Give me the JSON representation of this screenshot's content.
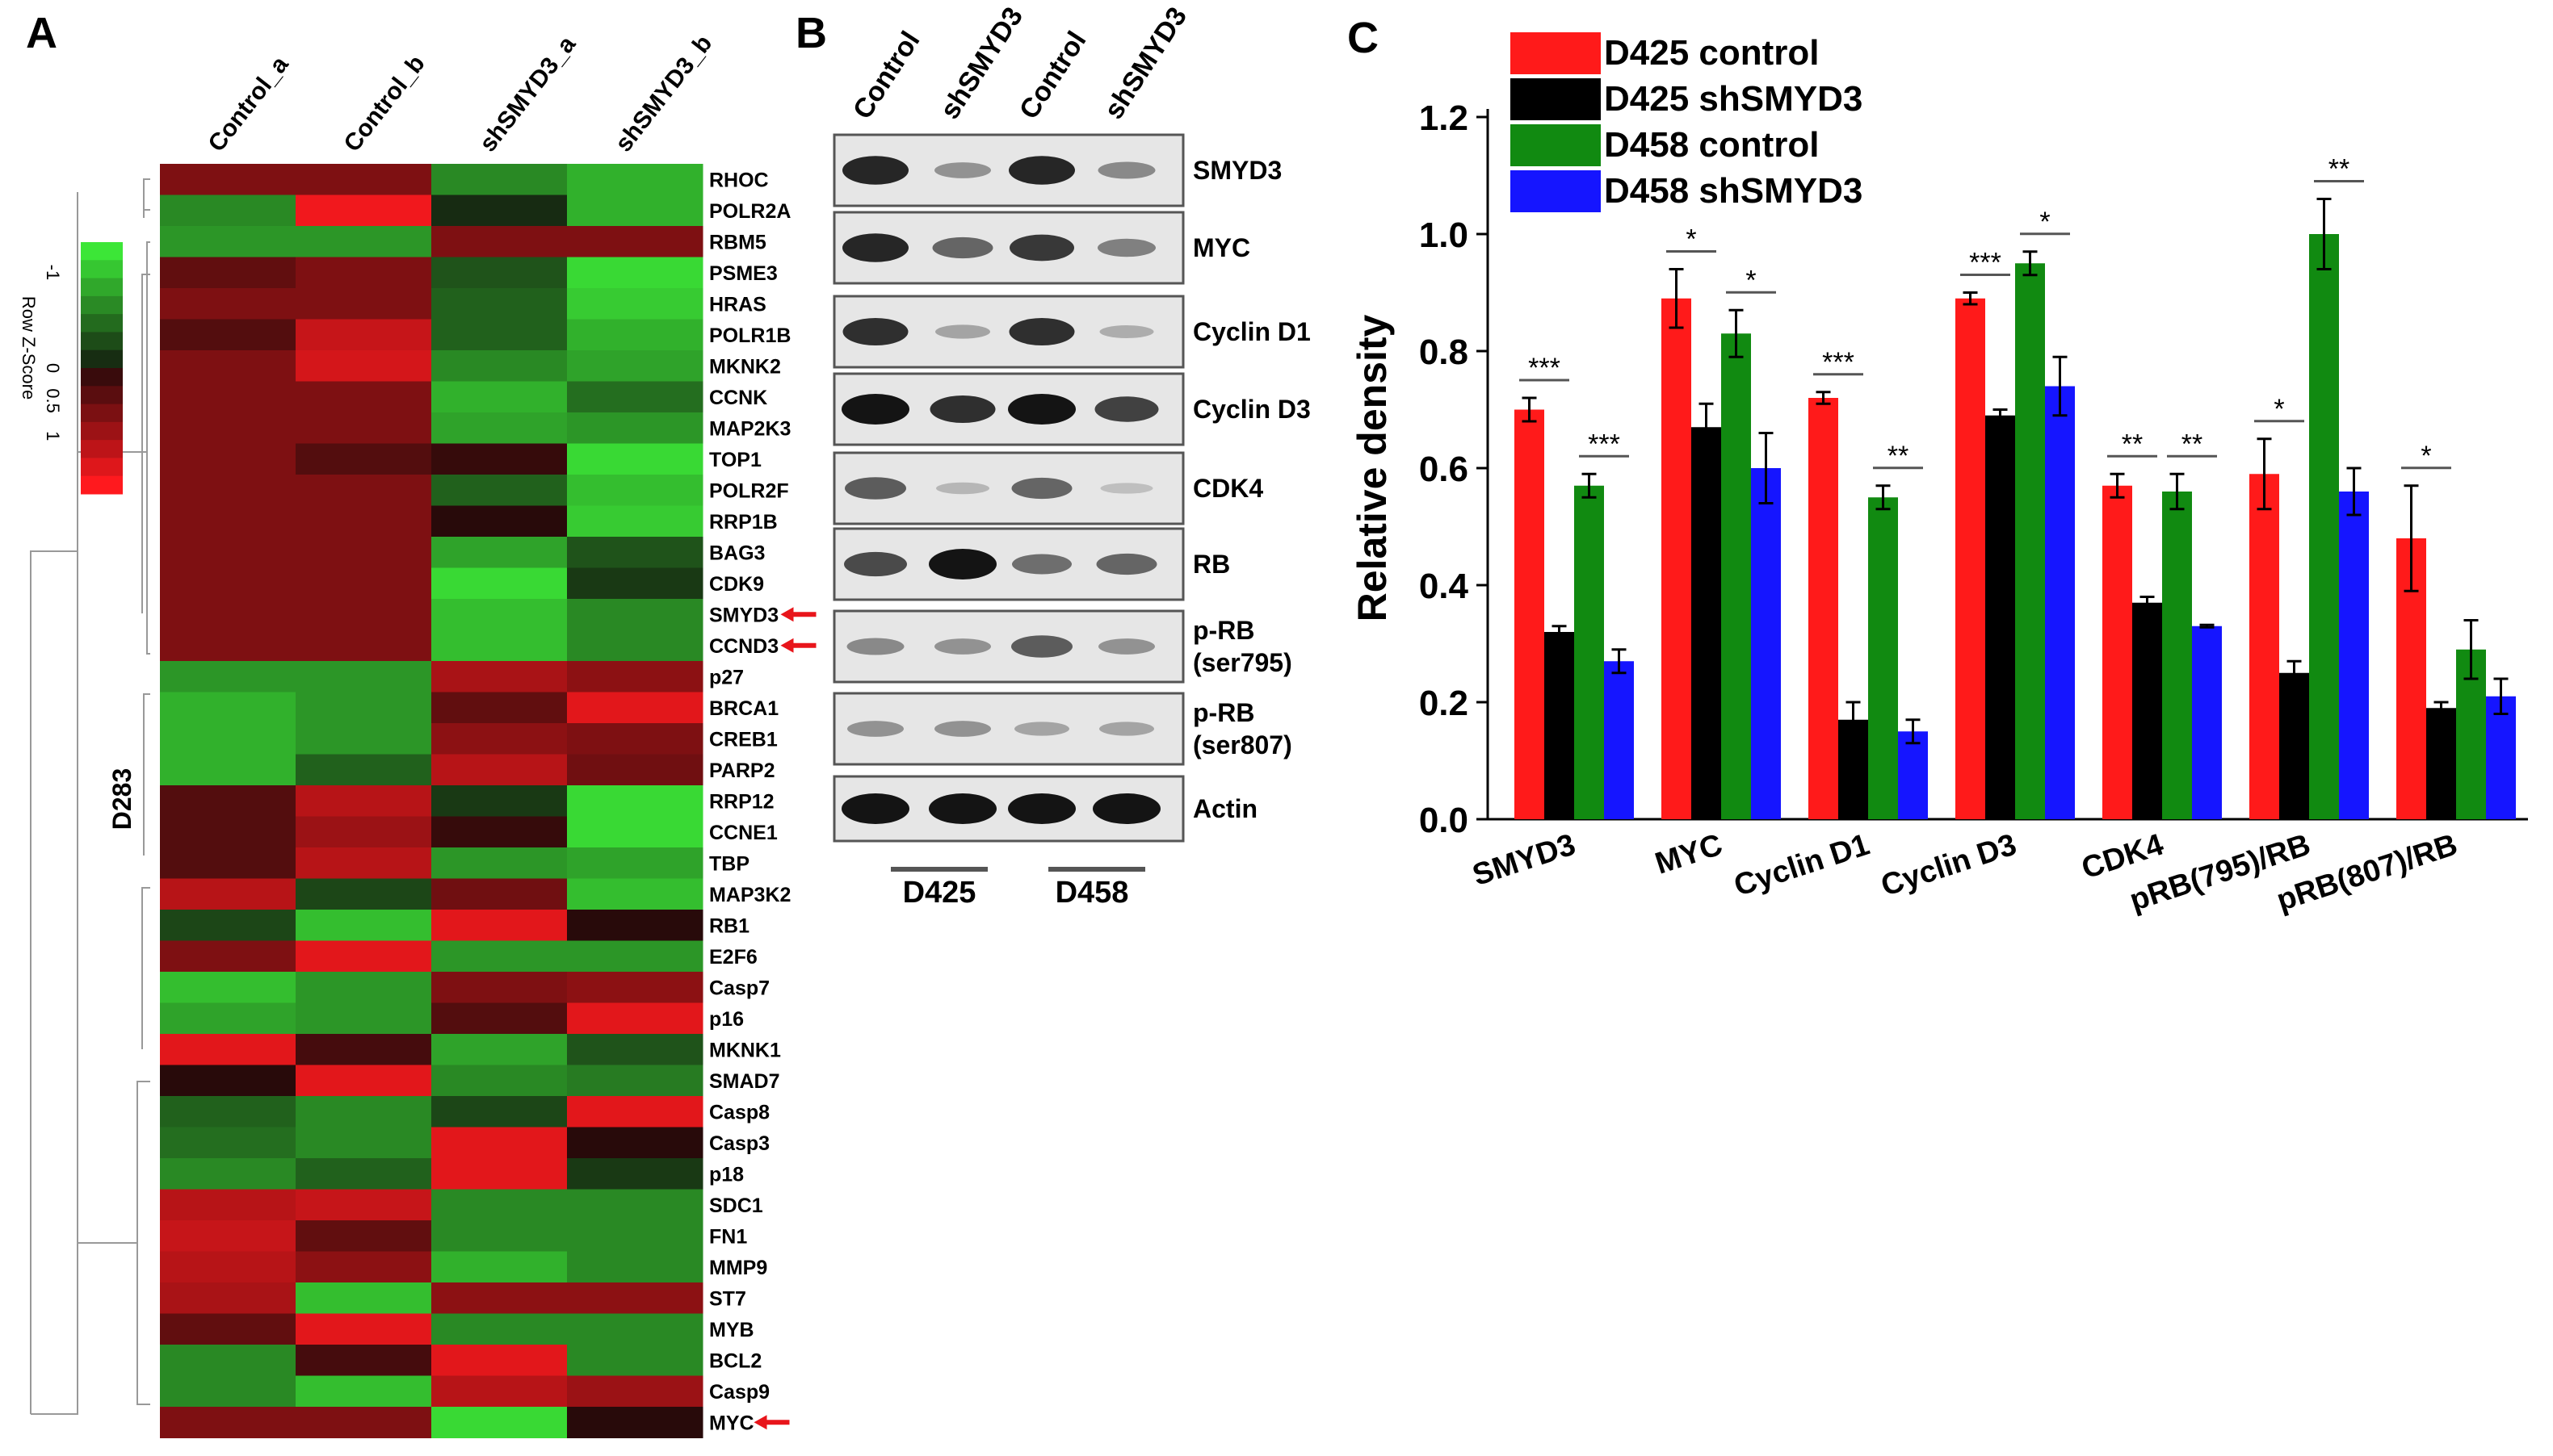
{
  "panels": {
    "a": "A",
    "b": "B",
    "c": "C"
  },
  "heatmap": {
    "columns": [
      "Control_a",
      "Control_b",
      "shSMYD3_a",
      "shSMYD3_b"
    ],
    "genes": [
      "RHOC",
      "POLR2A",
      "RBM5",
      "PSME3",
      "HRAS",
      "POLR1B",
      "MKNK2",
      "CCNK",
      "MAP2K3",
      "TOP1",
      "POLR2F",
      "RRP1B",
      "BAG3",
      "CDK9",
      "SMYD3",
      "CCND3",
      "p27",
      "BRCA1",
      "CREB1",
      "PARP2",
      "RRP12",
      "CCNE1",
      "TBP",
      "MAP3K2",
      "RB1",
      "E2F6",
      "Casp7",
      "p16",
      "MKNK1",
      "SMAD7",
      "Casp8",
      "Casp3",
      "p18",
      "SDC1",
      "FN1",
      "MMP9",
      "ST7",
      "MYB",
      "BCL2",
      "Casp9",
      "MYC"
    ],
    "arrow_genes": [
      "SMYD3",
      "CCND3",
      "MYC"
    ],
    "cluster_label": "D283",
    "colorkey_title": "Row Z-Score",
    "colorkey_ticks": [
      "-1",
      "0",
      "0.5",
      "1"
    ],
    "values": [
      [
        0.6,
        0.6,
        -0.8,
        -1.1
      ],
      [
        -0.8,
        1.4,
        -0.1,
        -1.1
      ],
      [
        -0.9,
        -0.9,
        0.6,
        0.6
      ],
      [
        0.4,
        0.6,
        -0.4,
        -1.4
      ],
      [
        0.6,
        0.6,
        -0.5,
        -1.3
      ],
      [
        0.3,
        1.1,
        -0.5,
        -1.1
      ],
      [
        0.6,
        1.2,
        -0.8,
        -1.0
      ],
      [
        0.6,
        0.6,
        -1.1,
        -0.6
      ],
      [
        0.6,
        0.6,
        -1.0,
        -0.9
      ],
      [
        0.6,
        0.3,
        0.1,
        -1.4
      ],
      [
        0.6,
        0.6,
        -0.5,
        -1.2
      ],
      [
        0.6,
        0.6,
        0.0,
        -1.3
      ],
      [
        0.6,
        0.6,
        -1.0,
        -0.4
      ],
      [
        0.6,
        0.6,
        -1.4,
        -0.2
      ],
      [
        0.6,
        0.6,
        -1.2,
        -0.8
      ],
      [
        0.6,
        0.6,
        -1.2,
        -0.8
      ],
      [
        -0.9,
        -0.9,
        0.9,
        0.7
      ],
      [
        -1.1,
        -0.9,
        0.4,
        1.3
      ],
      [
        -1.1,
        -0.9,
        0.7,
        0.6
      ],
      [
        -1.1,
        -0.5,
        1.0,
        0.5
      ],
      [
        0.3,
        1.0,
        -0.2,
        -1.4
      ],
      [
        0.3,
        0.8,
        0.1,
        -1.4
      ],
      [
        0.3,
        1.0,
        -0.9,
        -1.0
      ],
      [
        1.0,
        -0.3,
        0.5,
        -1.2
      ],
      [
        -0.3,
        -1.2,
        1.3,
        0.0
      ],
      [
        0.6,
        1.3,
        -0.9,
        -0.9
      ],
      [
        -1.2,
        -0.9,
        0.6,
        0.7
      ],
      [
        -1.0,
        -0.9,
        0.3,
        1.3
      ],
      [
        1.3,
        0.2,
        -1.0,
        -0.4
      ],
      [
        0.0,
        1.3,
        -0.8,
        -0.7
      ],
      [
        -0.5,
        -0.8,
        -0.3,
        1.3
      ],
      [
        -0.6,
        -0.8,
        1.3,
        0.0
      ],
      [
        -0.8,
        -0.5,
        1.3,
        -0.2
      ],
      [
        1.0,
        1.1,
        -0.8,
        -0.8
      ],
      [
        1.1,
        0.4,
        -0.8,
        -0.8
      ],
      [
        1.0,
        0.7,
        -1.1,
        -0.8
      ],
      [
        0.9,
        -1.2,
        0.7,
        0.7
      ],
      [
        0.4,
        1.3,
        -0.8,
        -0.8
      ],
      [
        -0.8,
        0.2,
        1.3,
        -0.8
      ],
      [
        -0.8,
        -1.2,
        1.0,
        0.8
      ],
      [
        0.6,
        0.6,
        -1.4,
        0.0
      ]
    ]
  },
  "western": {
    "lanes": [
      "Control",
      "shSMYD3",
      "Control",
      "shSMYD3"
    ],
    "groups": [
      "D425",
      "D458"
    ],
    "blots": [
      {
        "label": "SMYD3",
        "band": [
          0.9,
          0.3,
          0.9,
          0.35
        ]
      },
      {
        "label": "MYC",
        "band": [
          0.9,
          0.55,
          0.8,
          0.4
        ]
      },
      {
        "label": "Cyclin D1",
        "band": [
          0.85,
          0.2,
          0.85,
          0.15
        ]
      },
      {
        "label": "Cyclin D3",
        "band": [
          1.0,
          0.85,
          1.0,
          0.75
        ]
      },
      {
        "label": "CDK4",
        "band": [
          0.6,
          0.1,
          0.55,
          0.05
        ]
      },
      {
        "label": "RB",
        "band": [
          0.7,
          1.0,
          0.5,
          0.55
        ]
      },
      {
        "label": "p-RB\n(ser795)",
        "band": [
          0.35,
          0.3,
          0.6,
          0.3
        ]
      },
      {
        "label": "p-RB\n(ser807)",
        "band": [
          0.3,
          0.3,
          0.2,
          0.2
        ]
      },
      {
        "label": "Actin",
        "band": [
          1.0,
          1.0,
          1.0,
          1.0
        ]
      }
    ]
  },
  "chart_data": {
    "type": "bar",
    "ylabel": "Relative density",
    "ylim": [
      0,
      1.2
    ],
    "yticks": [
      "0.0",
      "0.2",
      "0.4",
      "0.6",
      "0.8",
      "1.0",
      "1.2"
    ],
    "categories": [
      "SMYD3",
      "MYC",
      "Cyclin D1",
      "Cyclin D3",
      "CDK4",
      "pRB(795)/RB",
      "pRB(807)/RB"
    ],
    "series": [
      {
        "name": "D425 control",
        "color": "#ff1a1a",
        "values": [
          0.7,
          0.89,
          0.72,
          0.89,
          0.57,
          0.59,
          0.48
        ],
        "errors": [
          0.02,
          0.05,
          0.01,
          0.01,
          0.02,
          0.06,
          0.09
        ]
      },
      {
        "name": "D425 shSMYD3",
        "color": "#000000",
        "values": [
          0.32,
          0.67,
          0.17,
          0.69,
          0.37,
          0.25,
          0.19
        ],
        "errors": [
          0.01,
          0.04,
          0.03,
          0.01,
          0.01,
          0.02,
          0.01
        ]
      },
      {
        "name": "D458 control",
        "color": "#118a11",
        "values": [
          0.57,
          0.83,
          0.55,
          0.95,
          0.56,
          1.0,
          0.29
        ],
        "errors": [
          0.02,
          0.04,
          0.02,
          0.02,
          0.03,
          0.06,
          0.05
        ]
      },
      {
        "name": "D458 shSMYD3",
        "color": "#1515ff",
        "values": [
          0.27,
          0.6,
          0.15,
          0.74,
          0.33,
          0.56,
          0.21
        ],
        "errors": [
          0.02,
          0.06,
          0.02,
          0.05,
          0.002,
          0.04,
          0.03
        ]
      }
    ],
    "significance": [
      {
        "category": 0,
        "from": 0,
        "to": 1,
        "label": "***"
      },
      {
        "category": 0,
        "from": 2,
        "to": 3,
        "label": "***"
      },
      {
        "category": 1,
        "from": 0,
        "to": 1,
        "label": "*"
      },
      {
        "category": 1,
        "from": 2,
        "to": 3,
        "label": "*"
      },
      {
        "category": 2,
        "from": 0,
        "to": 1,
        "label": "***"
      },
      {
        "category": 2,
        "from": 2,
        "to": 3,
        "label": "**"
      },
      {
        "category": 3,
        "from": 0,
        "to": 1,
        "label": "***"
      },
      {
        "category": 3,
        "from": 2,
        "to": 3,
        "label": "*"
      },
      {
        "category": 4,
        "from": 0,
        "to": 1,
        "label": "**"
      },
      {
        "category": 4,
        "from": 2,
        "to": 3,
        "label": "**"
      },
      {
        "category": 5,
        "from": 0,
        "to": 1,
        "label": "*"
      },
      {
        "category": 5,
        "from": 2,
        "to": 3,
        "label": "**"
      },
      {
        "category": 6,
        "from": 0,
        "to": 1,
        "label": "*"
      }
    ],
    "legend": "top-left"
  }
}
